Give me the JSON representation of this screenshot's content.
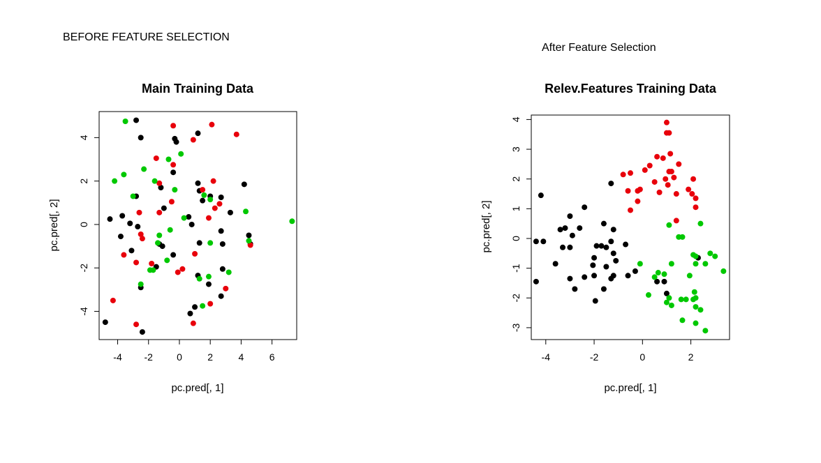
{
  "captions": {
    "left": "BEFORE FEATURE SELECTION",
    "right": "After Feature Selection"
  },
  "colors": {
    "black": "#000000",
    "red": "#e8000b",
    "green": "#00c800"
  },
  "chart_data": [
    {
      "type": "scatter",
      "title": "Main Training Data",
      "xlabel": "pc.pred[, 1]",
      "ylabel": "pc.pred[, 2]",
      "xlim": [
        -5.2,
        7.6
      ],
      "ylim": [
        -5.3,
        5.2
      ],
      "xticks": [
        -4,
        -2,
        0,
        2,
        4,
        6
      ],
      "yticks": [
        -4,
        -2,
        0,
        2,
        4
      ],
      "xtick_labels": [
        "-4",
        "-2",
        "0",
        "2",
        "4",
        "6"
      ],
      "ytick_labels": [
        "-4",
        "-2",
        "0",
        "2",
        "4"
      ],
      "grid": false,
      "series": [
        {
          "color": "black",
          "points": [
            [
              -2.8,
              4.8
            ],
            [
              -2.5,
              4.0
            ],
            [
              -0.3,
              3.95
            ],
            [
              -0.2,
              3.8
            ],
            [
              1.2,
              4.2
            ],
            [
              -0.4,
              2.4
            ],
            [
              -1.2,
              1.7
            ],
            [
              1.2,
              1.9
            ],
            [
              1.3,
              1.55
            ],
            [
              1.5,
              1.1
            ],
            [
              2.0,
              1.3
            ],
            [
              2.7,
              1.25
            ],
            [
              4.2,
              1.85
            ],
            [
              -4.5,
              0.25
            ],
            [
              -3.7,
              0.4
            ],
            [
              -3.2,
              0.05
            ],
            [
              -2.7,
              -0.1
            ],
            [
              -3.8,
              -0.55
            ],
            [
              -2.8,
              1.3
            ],
            [
              -1.0,
              0.75
            ],
            [
              0.6,
              0.35
            ],
            [
              0.8,
              0.0
            ],
            [
              -1.3,
              -0.9
            ],
            [
              -1.1,
              -1.0
            ],
            [
              1.3,
              -0.85
            ],
            [
              2.7,
              -0.3
            ],
            [
              2.8,
              -0.9
            ],
            [
              4.5,
              -0.5
            ],
            [
              4.6,
              -0.9
            ],
            [
              -3.1,
              -1.2
            ],
            [
              -1.5,
              -1.95
            ],
            [
              -0.4,
              -1.4
            ],
            [
              1.2,
              -2.35
            ],
            [
              2.8,
              -2.05
            ],
            [
              3.3,
              0.55
            ],
            [
              1.9,
              -2.75
            ],
            [
              2.7,
              -3.3
            ],
            [
              1.0,
              -3.8
            ],
            [
              0.7,
              -4.1
            ],
            [
              -2.5,
              -2.9
            ],
            [
              -4.8,
              -4.5
            ],
            [
              -2.4,
              -4.95
            ]
          ]
        },
        {
          "color": "red",
          "points": [
            [
              -0.4,
              4.55
            ],
            [
              2.1,
              4.6
            ],
            [
              3.7,
              4.15
            ],
            [
              0.9,
              3.9
            ],
            [
              -1.5,
              3.05
            ],
            [
              -0.4,
              2.75
            ],
            [
              -1.3,
              1.9
            ],
            [
              1.5,
              1.6
            ],
            [
              2.2,
              2.0
            ],
            [
              -0.5,
              1.05
            ],
            [
              -1.3,
              0.55
            ],
            [
              2.3,
              0.75
            ],
            [
              2.6,
              0.95
            ],
            [
              1.9,
              0.3
            ],
            [
              -2.6,
              0.55
            ],
            [
              -2.5,
              -0.45
            ],
            [
              -2.4,
              -0.65
            ],
            [
              -3.6,
              -1.4
            ],
            [
              -2.8,
              -1.75
            ],
            [
              -1.8,
              -1.8
            ],
            [
              -0.1,
              -2.2
            ],
            [
              0.2,
              -2.05
            ],
            [
              1.0,
              -1.35
            ],
            [
              4.6,
              -0.95
            ],
            [
              3.0,
              -2.95
            ],
            [
              -4.3,
              -3.5
            ],
            [
              2.0,
              -3.65
            ],
            [
              -2.8,
              -4.6
            ],
            [
              0.9,
              -4.55
            ]
          ]
        },
        {
          "color": "green",
          "points": [
            [
              -3.5,
              4.75
            ],
            [
              0.1,
              3.25
            ],
            [
              -0.7,
              3.0
            ],
            [
              -2.3,
              2.55
            ],
            [
              -3.6,
              2.3
            ],
            [
              -4.2,
              2.0
            ],
            [
              -1.6,
              2.0
            ],
            [
              -0.3,
              1.6
            ],
            [
              -3.0,
              1.3
            ],
            [
              1.6,
              1.35
            ],
            [
              2.0,
              1.15
            ],
            [
              4.3,
              0.6
            ],
            [
              7.3,
              0.15
            ],
            [
              0.3,
              0.3
            ],
            [
              -0.6,
              -0.25
            ],
            [
              -1.3,
              -0.5
            ],
            [
              -1.4,
              -0.85
            ],
            [
              2.0,
              -0.85
            ],
            [
              4.5,
              -0.75
            ],
            [
              -1.9,
              -2.1
            ],
            [
              -1.7,
              -2.1
            ],
            [
              -0.8,
              -1.65
            ],
            [
              1.3,
              -2.5
            ],
            [
              1.9,
              -2.4
            ],
            [
              3.2,
              -2.2
            ],
            [
              -2.5,
              -2.75
            ],
            [
              1.5,
              -3.75
            ]
          ]
        }
      ]
    },
    {
      "type": "scatter",
      "title": "Relev.Features Training Data",
      "xlabel": "pc.pred[, 1]",
      "ylabel": "pc.pred[, 2]",
      "xlim": [
        -4.6,
        3.6
      ],
      "ylim": [
        -3.4,
        4.15
      ],
      "xticks": [
        -4,
        -2,
        0,
        2
      ],
      "yticks": [
        -3,
        -2,
        -1,
        0,
        1,
        2,
        3,
        4
      ],
      "xtick_labels": [
        "-4",
        "-2",
        "0",
        "2"
      ],
      "ytick_labels": [
        "-3",
        "-2",
        "-1",
        "0",
        "1",
        "2",
        "3",
        "4"
      ],
      "grid": false,
      "series": [
        {
          "color": "black",
          "points": [
            [
              -4.2,
              1.45
            ],
            [
              -4.4,
              -0.1
            ],
            [
              -4.1,
              -0.1
            ],
            [
              -3.4,
              0.3
            ],
            [
              -3.2,
              0.35
            ],
            [
              -3.0,
              0.75
            ],
            [
              -2.6,
              0.35
            ],
            [
              -2.4,
              1.05
            ],
            [
              -3.3,
              -0.3
            ],
            [
              -3.0,
              -0.3
            ],
            [
              -2.9,
              0.1
            ],
            [
              -3.6,
              -0.85
            ],
            [
              -4.4,
              -1.45
            ],
            [
              -3.0,
              -1.35
            ],
            [
              -2.8,
              -1.7
            ],
            [
              -2.4,
              -1.3
            ],
            [
              -2.0,
              -0.65
            ],
            [
              -2.05,
              -0.9
            ],
            [
              -1.9,
              -0.25
            ],
            [
              -1.7,
              -0.25
            ],
            [
              -1.6,
              0.5
            ],
            [
              -1.5,
              -0.3
            ],
            [
              -1.2,
              0.3
            ],
            [
              -1.3,
              -0.1
            ],
            [
              -1.2,
              -0.5
            ],
            [
              -1.1,
              -0.75
            ],
            [
              -1.3,
              -1.35
            ],
            [
              -1.2,
              -1.25
            ],
            [
              -1.5,
              -0.95
            ],
            [
              -1.6,
              -1.7
            ],
            [
              -1.95,
              -2.1
            ],
            [
              -2.0,
              -1.25
            ],
            [
              -0.7,
              -0.2
            ],
            [
              -0.6,
              -1.25
            ],
            [
              -0.3,
              -1.1
            ],
            [
              -1.3,
              1.85
            ],
            [
              0.6,
              -1.45
            ],
            [
              0.9,
              -1.45
            ],
            [
              1.0,
              -1.85
            ],
            [
              2.3,
              -0.65
            ]
          ]
        },
        {
          "color": "red",
          "points": [
            [
              1.0,
              3.9
            ],
            [
              1.0,
              3.55
            ],
            [
              1.1,
              3.55
            ],
            [
              1.15,
              2.85
            ],
            [
              0.6,
              2.75
            ],
            [
              0.85,
              2.7
            ],
            [
              1.5,
              2.5
            ],
            [
              0.3,
              2.45
            ],
            [
              1.2,
              2.25
            ],
            [
              1.1,
              2.25
            ],
            [
              0.1,
              2.3
            ],
            [
              -0.5,
              2.2
            ],
            [
              -0.8,
              2.15
            ],
            [
              0.95,
              2.0
            ],
            [
              1.3,
              2.05
            ],
            [
              2.1,
              2.0
            ],
            [
              0.5,
              1.9
            ],
            [
              1.05,
              1.8
            ],
            [
              -0.6,
              1.6
            ],
            [
              -0.2,
              1.6
            ],
            [
              -0.1,
              1.65
            ],
            [
              0.7,
              1.55
            ],
            [
              1.9,
              1.65
            ],
            [
              2.05,
              1.5
            ],
            [
              1.4,
              1.5
            ],
            [
              2.2,
              1.35
            ],
            [
              -0.2,
              1.25
            ],
            [
              -0.5,
              0.95
            ],
            [
              2.2,
              1.05
            ],
            [
              1.4,
              0.6
            ]
          ]
        },
        {
          "color": "green",
          "points": [
            [
              2.4,
              0.5
            ],
            [
              1.1,
              0.45
            ],
            [
              1.5,
              0.05
            ],
            [
              1.65,
              0.05
            ],
            [
              2.8,
              -0.5
            ],
            [
              2.1,
              -0.55
            ],
            [
              3.0,
              -0.6
            ],
            [
              2.2,
              -0.6
            ],
            [
              2.6,
              -0.85
            ],
            [
              2.2,
              -0.85
            ],
            [
              1.2,
              -0.85
            ],
            [
              -0.1,
              -0.85
            ],
            [
              3.35,
              -1.1
            ],
            [
              0.65,
              -1.15
            ],
            [
              0.9,
              -1.2
            ],
            [
              1.95,
              -1.25
            ],
            [
              0.5,
              -1.3
            ],
            [
              0.25,
              -1.9
            ],
            [
              1.1,
              -2.0
            ],
            [
              1.6,
              -2.05
            ],
            [
              1.8,
              -2.05
            ],
            [
              2.1,
              -2.05
            ],
            [
              2.2,
              -2.0
            ],
            [
              1.0,
              -2.15
            ],
            [
              1.2,
              -2.25
            ],
            [
              2.2,
              -2.3
            ],
            [
              2.4,
              -2.4
            ],
            [
              2.15,
              -1.8
            ],
            [
              1.65,
              -2.75
            ],
            [
              2.2,
              -2.85
            ],
            [
              2.6,
              -3.1
            ]
          ]
        }
      ]
    }
  ]
}
